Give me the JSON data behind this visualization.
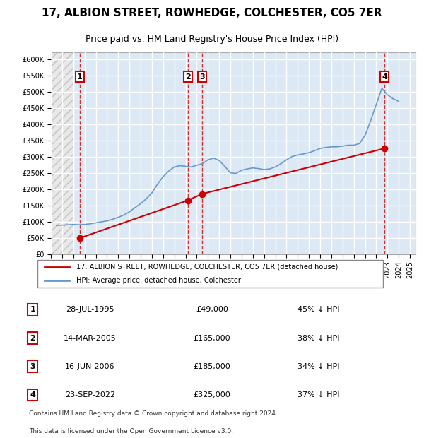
{
  "title": "17, ALBION STREET, ROWHEDGE, COLCHESTER, CO5 7ER",
  "subtitle": "Price paid vs. HM Land Registry's House Price Index (HPI)",
  "legend_label_red": "17, ALBION STREET, ROWHEDGE, COLCHESTER, CO5 7ER (detached house)",
  "legend_label_blue": "HPI: Average price, detached house, Colchester",
  "footer_line1": "Contains HM Land Registry data © Crown copyright and database right 2024.",
  "footer_line2": "This data is licensed under the Open Government Licence v3.0.",
  "transactions": [
    {
      "num": 1,
      "date": "28-JUL-1995",
      "price": 49000,
      "hpi_diff": "45% ↓ HPI",
      "year": 1995.57
    },
    {
      "num": 2,
      "date": "14-MAR-2005",
      "price": 165000,
      "hpi_diff": "38% ↓ HPI",
      "year": 2005.2
    },
    {
      "num": 3,
      "date": "16-JUN-2006",
      "price": 185000,
      "hpi_diff": "34% ↓ HPI",
      "year": 2006.46
    },
    {
      "num": 4,
      "date": "23-SEP-2022",
      "price": 325000,
      "hpi_diff": "37% ↓ HPI",
      "year": 2022.73
    }
  ],
  "ylim": [
    0,
    620000
  ],
  "yticks": [
    0,
    50000,
    100000,
    150000,
    200000,
    250000,
    300000,
    350000,
    400000,
    450000,
    500000,
    550000,
    600000
  ],
  "xlim_start": 1993.0,
  "xlim_end": 2025.5,
  "background_hatch_color": "#d0d0d0",
  "plot_bg_color": "#dce9f5",
  "grid_color": "#ffffff",
  "red_line_color": "#cc0000",
  "blue_line_color": "#6699cc",
  "hpi_data_years": [
    1993.5,
    1994.0,
    1994.5,
    1995.0,
    1995.5,
    1996.0,
    1996.5,
    1997.0,
    1997.5,
    1998.0,
    1998.5,
    1999.0,
    1999.5,
    2000.0,
    2000.5,
    2001.0,
    2001.5,
    2002.0,
    2002.5,
    2003.0,
    2003.5,
    2004.0,
    2004.5,
    2005.0,
    2005.5,
    2006.0,
    2006.5,
    2007.0,
    2007.5,
    2008.0,
    2008.5,
    2009.0,
    2009.5,
    2010.0,
    2010.5,
    2011.0,
    2011.5,
    2012.0,
    2012.5,
    2013.0,
    2013.5,
    2014.0,
    2014.5,
    2015.0,
    2015.5,
    2016.0,
    2016.5,
    2017.0,
    2017.5,
    2018.0,
    2018.5,
    2019.0,
    2019.5,
    2020.0,
    2020.5,
    2021.0,
    2021.5,
    2022.0,
    2022.5,
    2023.0,
    2023.5,
    2024.0
  ],
  "hpi_data_values": [
    88000,
    89000,
    90000,
    91000,
    90000,
    91000,
    93000,
    96000,
    99000,
    102000,
    107000,
    113000,
    120000,
    130000,
    143000,
    155000,
    170000,
    188000,
    215000,
    238000,
    255000,
    268000,
    272000,
    270000,
    268000,
    273000,
    278000,
    290000,
    295000,
    288000,
    270000,
    250000,
    248000,
    258000,
    262000,
    265000,
    263000,
    260000,
    262000,
    268000,
    278000,
    290000,
    300000,
    305000,
    308000,
    312000,
    318000,
    325000,
    328000,
    330000,
    330000,
    332000,
    335000,
    335000,
    340000,
    365000,
    410000,
    460000,
    510000,
    490000,
    478000,
    470000
  ]
}
